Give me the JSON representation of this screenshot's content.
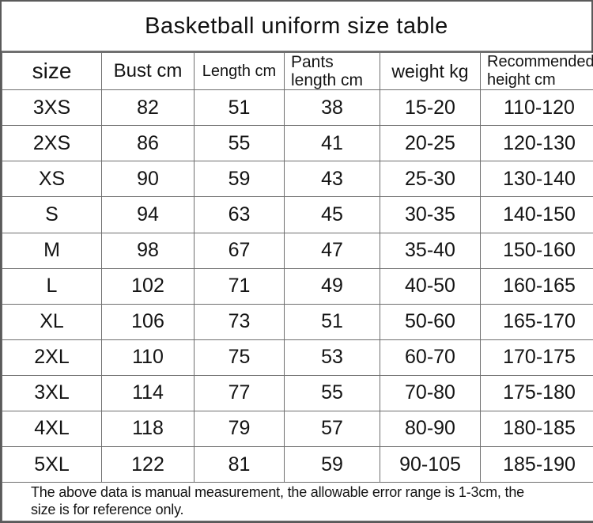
{
  "title": "Basketball uniform size table",
  "table": {
    "columns": [
      {
        "label": "size"
      },
      {
        "label": "Bust cm"
      },
      {
        "label": "Length cm"
      },
      {
        "label": "Pants length cm"
      },
      {
        "label": "weight kg"
      },
      {
        "label": "Recommended height cm"
      }
    ],
    "rows": [
      [
        "3XS",
        "82",
        "51",
        "38",
        "15-20",
        "110-120"
      ],
      [
        "2XS",
        "86",
        "55",
        "41",
        "20-25",
        "120-130"
      ],
      [
        "XS",
        "90",
        "59",
        "43",
        "25-30",
        "130-140"
      ],
      [
        "S",
        "94",
        "63",
        "45",
        "30-35",
        "140-150"
      ],
      [
        "M",
        "98",
        "67",
        "47",
        "35-40",
        "150-160"
      ],
      [
        "L",
        "102",
        "71",
        "49",
        "40-50",
        "160-165"
      ],
      [
        "XL",
        "106",
        "73",
        "51",
        "50-60",
        "165-170"
      ],
      [
        "2XL",
        "110",
        "75",
        "53",
        "60-70",
        "170-175"
      ],
      [
        "3XL",
        "114",
        "77",
        "55",
        "70-80",
        "175-180"
      ],
      [
        "4XL",
        "118",
        "79",
        "57",
        "80-90",
        "180-185"
      ],
      [
        "5XL",
        "122",
        "81",
        "59",
        "90-105",
        "185-190"
      ]
    ]
  },
  "footer_note": "The above data is manual measurement, the allowable error range is 1-3cm, the size is for reference only.",
  "colors": {
    "border": "#6f6f6f",
    "text": "#141414",
    "background": "#ffffff"
  }
}
